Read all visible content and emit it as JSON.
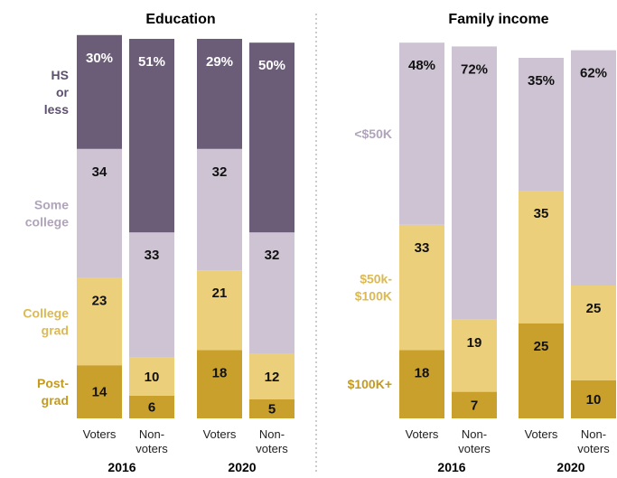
{
  "chart_data": [
    {
      "type": "bar",
      "stacked": true,
      "title": "Education",
      "years": [
        "2016",
        "2020"
      ],
      "groups": [
        "Voters",
        "Non-\nvoters"
      ],
      "categories": [
        "2016 Voters",
        "2016 Non-voters",
        "2020 Voters",
        "2020 Non-voters"
      ],
      "series": [
        {
          "name": "HS\nor\nless",
          "values": [
            30,
            51,
            29,
            50
          ],
          "labels": [
            "30%",
            "51%",
            "29%",
            "50%"
          ],
          "color": "#6b5c78",
          "name_color": "#5d4f6e",
          "text_color": "#ffffff"
        },
        {
          "name": "Some\ncollege",
          "values": [
            34,
            33,
            32,
            32
          ],
          "labels": [
            "34",
            "33",
            "32",
            "32"
          ],
          "color": "#cdc3d3",
          "name_color": "#b0a4ba",
          "text_color": "#111111"
        },
        {
          "name": "College\ngrad",
          "values": [
            23,
            10,
            21,
            12
          ],
          "labels": [
            "23",
            "10",
            "21",
            "12"
          ],
          "color": "#eccf7a",
          "name_color": "#dcb954",
          "text_color": "#111111"
        },
        {
          "name": "Post-\ngrad",
          "values": [
            14,
            6,
            18,
            5
          ],
          "labels": [
            "14",
            "6",
            "18",
            "5"
          ],
          "color": "#c9a02c",
          "name_color": "#c39a1f",
          "text_color": "#111111"
        }
      ]
    },
    {
      "type": "bar",
      "stacked": true,
      "title": "Family income",
      "years": [
        "2016",
        "2020"
      ],
      "groups": [
        "Voters",
        "Non-\nvoters"
      ],
      "categories": [
        "2016 Voters",
        "2016 Non-voters",
        "2020 Voters",
        "2020 Non-voters"
      ],
      "series": [
        {
          "name": "<$50K",
          "values": [
            48,
            72,
            35,
            62
          ],
          "labels": [
            "48%",
            "72%",
            "35%",
            "62%"
          ],
          "color": "#cdc3d3",
          "name_color": "#b0a4ba",
          "text_color": "#111111"
        },
        {
          "name": "$50k-\n$100K",
          "values": [
            33,
            19,
            35,
            25
          ],
          "labels": [
            "33",
            "19",
            "35",
            "25"
          ],
          "color": "#eccf7a",
          "name_color": "#dcb954",
          "text_color": "#111111"
        },
        {
          "name": "$100K+",
          "values": [
            18,
            7,
            25,
            10
          ],
          "labels": [
            "18",
            "7",
            "25",
            "10"
          ],
          "color": "#c9a02c",
          "name_color": "#c39a1f",
          "text_color": "#111111"
        }
      ]
    }
  ]
}
